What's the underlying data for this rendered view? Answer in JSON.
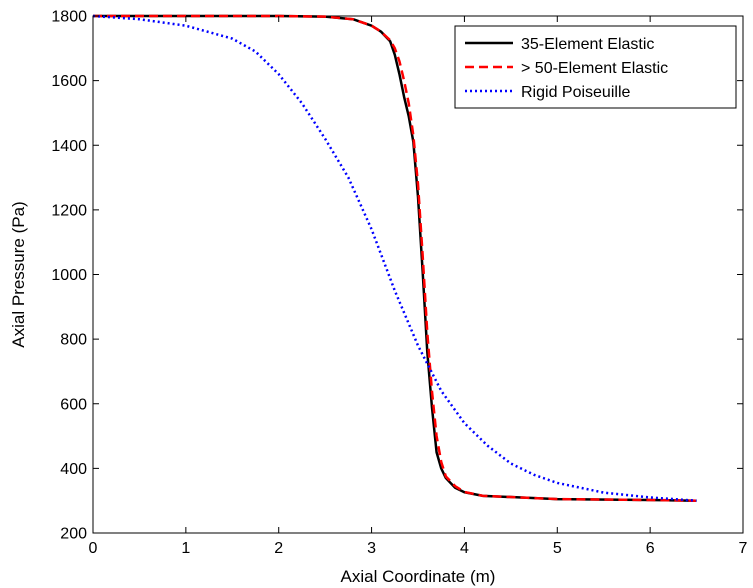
{
  "chart_data": {
    "type": "line",
    "xlabel": "Axial Coordinate (m)",
    "ylabel": "Axial Pressure (Pa)",
    "xlim": [
      0,
      7
    ],
    "ylim": [
      200,
      1800
    ],
    "xticks": [
      0,
      1,
      2,
      3,
      4,
      5,
      6,
      7
    ],
    "yticks": [
      200,
      400,
      600,
      800,
      1000,
      1200,
      1400,
      1600,
      1800
    ],
    "grid": false,
    "legend_position": "top-right",
    "series": [
      {
        "name": "35-Element Elastic",
        "color": "#000000",
        "style": "solid",
        "x": [
          0,
          1,
          2,
          2.5,
          2.8,
          3.0,
          3.1,
          3.2,
          3.25,
          3.3,
          3.35,
          3.4,
          3.45,
          3.5,
          3.55,
          3.6,
          3.65,
          3.7,
          3.75,
          3.8,
          3.9,
          4.0,
          4.2,
          5.0,
          6.0,
          6.5
        ],
        "y": [
          1800,
          1800,
          1800,
          1798,
          1790,
          1770,
          1752,
          1722,
          1680,
          1620,
          1550,
          1490,
          1410,
          1240,
          1010,
          760,
          590,
          450,
          400,
          370,
          340,
          326,
          315,
          305,
          302,
          300
        ]
      },
      {
        "name": "> 50-Element Elastic",
        "color": "#ff0000",
        "style": "dashed",
        "x": [
          0,
          1,
          2,
          2.5,
          2.8,
          3.0,
          3.1,
          3.2,
          3.25,
          3.3,
          3.35,
          3.4,
          3.45,
          3.5,
          3.55,
          3.6,
          3.65,
          3.7,
          3.75,
          3.8,
          3.9,
          4.0,
          4.2,
          5.0,
          6.0,
          6.5
        ],
        "y": [
          1800,
          1800,
          1800,
          1798,
          1790,
          1770,
          1752,
          1725,
          1700,
          1660,
          1600,
          1530,
          1430,
          1280,
          1060,
          820,
          640,
          500,
          420,
          375,
          345,
          327,
          315,
          305,
          302,
          300
        ]
      },
      {
        "name": "Rigid Poiseuille",
        "color": "#0000ff",
        "style": "dotted",
        "x": [
          0,
          0.5,
          1.0,
          1.5,
          1.75,
          2.0,
          2.25,
          2.5,
          2.75,
          3.0,
          3.25,
          3.5,
          3.75,
          4.0,
          4.25,
          4.5,
          4.75,
          5.0,
          5.5,
          6.0,
          6.5
        ],
        "y": [
          1800,
          1790,
          1770,
          1730,
          1690,
          1620,
          1530,
          1420,
          1300,
          1140,
          950,
          780,
          640,
          540,
          470,
          415,
          380,
          355,
          325,
          310,
          300
        ]
      }
    ]
  }
}
